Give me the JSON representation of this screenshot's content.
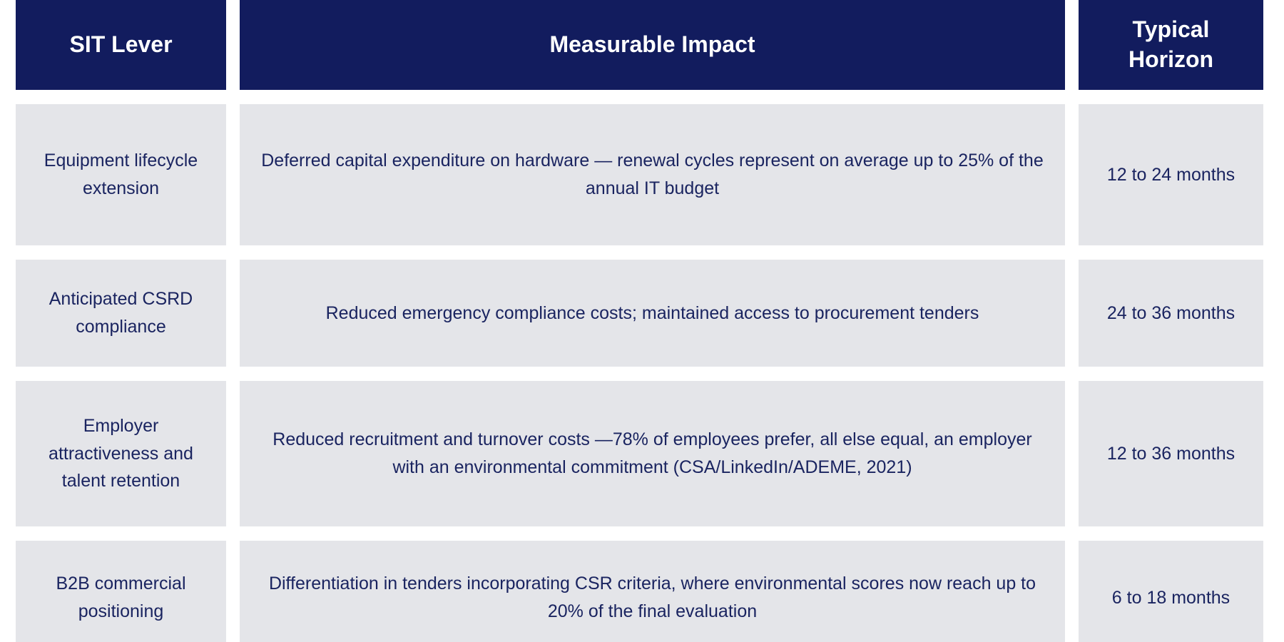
{
  "table": {
    "header": [
      "SIT Lever",
      "Measurable Impact",
      "Typical Horizon"
    ],
    "rows": [
      [
        "Equipment lifecycle extension",
        "Deferred capital expenditure on hardware — renewal cycles represent on average up to 25% of the annual IT budget",
        "12 to 24 months"
      ],
      [
        "Anticipated CSRD compliance",
        "Reduced emergency compliance costs; maintained access to procurement tenders",
        "24 to 36 months"
      ],
      [
        "Employer attractiveness and talent retention",
        "Reduced recruitment and turnover costs —78% of employees prefer, all else equal, an employer with an environmental commitment (CSA/LinkedIn/ADEME, 2021)",
        "12 to 36 months"
      ],
      [
        "B2B commercial positioning",
        "Differentiation in tenders incorporating CSR criteria, where environmental scores now reach up to 20% of the final evaluation",
        "6 to 18 months"
      ]
    ]
  }
}
